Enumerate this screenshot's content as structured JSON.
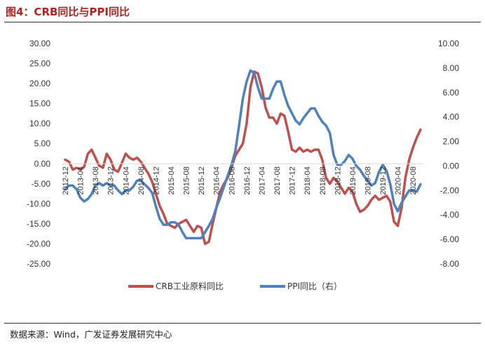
{
  "header": {
    "title": "图4：CRB同比与PPI同比"
  },
  "footer": {
    "source": "数据来源：Wind，广发证券发展研究中心"
  },
  "colors": {
    "crb": "#c0504d",
    "ppi": "#4f81bd",
    "title": "#b22222"
  },
  "chart_data": {
    "type": "line",
    "title": "图4：CRB同比与PPI同比",
    "x_tick_labels": [
      "2012-12",
      "2013-04",
      "2013-08",
      "2013-12",
      "2014-04",
      "2014-08",
      "2014-12",
      "2015-04",
      "2015-08",
      "2015-12",
      "2016-04",
      "2016-08",
      "2016-12",
      "2017-04",
      "2017-08",
      "2017-12",
      "2018-04",
      "2018-08",
      "2018-12",
      "2019-04",
      "2019-08",
      "2019-12",
      "2020-04",
      "2020-08"
    ],
    "left_axis": {
      "min": -25,
      "max": 30,
      "ticks": [
        "30.00",
        "25.00",
        "20.00",
        "15.00",
        "10.00",
        "5.00",
        "0.00",
        "-5.00",
        "-10.00",
        "-15.00",
        "-20.00",
        "-25.00"
      ]
    },
    "right_axis": {
      "min": -8,
      "max": 10,
      "ticks": [
        "10.00",
        "8.00",
        "6.00",
        "4.00",
        "2.00",
        "0.00",
        "-2.00",
        "-4.00",
        "-6.00",
        "-8.00"
      ]
    },
    "series": [
      {
        "name": "CRB工业原料同比",
        "axis": "left",
        "start": "2012-12",
        "values": [
          1.0,
          0.5,
          -1.5,
          -1.0,
          -1.5,
          -0.8,
          2.5,
          3.5,
          1.5,
          -0.5,
          -1.0,
          2.5,
          1.0,
          -1.5,
          -2.0,
          0.2,
          2.5,
          1.5,
          1.0,
          1.5,
          0.5,
          -1.0,
          -2.5,
          -4.5,
          -7.5,
          -10.5,
          -12.5,
          -15.0,
          -15.5,
          -16.0,
          -15.0,
          -14.5,
          -14.0,
          -15.5,
          -17.0,
          -15.5,
          -16.0,
          -20.0,
          -19.5,
          -15.0,
          -11.0,
          -7.0,
          -5.0,
          -3.5,
          -1.0,
          2.0,
          3.5,
          5.0,
          10.0,
          19.0,
          23.0,
          22.5,
          19.0,
          14.0,
          11.5,
          11.5,
          10.0,
          12.5,
          12.0,
          8.0,
          3.5,
          3.0,
          4.0,
          3.0,
          3.5,
          3.0,
          3.5,
          3.5,
          1.0,
          -3.5,
          -5.0,
          -3.5,
          -4.5,
          -6.0,
          -7.5,
          -6.0,
          -7.0,
          -10.0,
          -12.0,
          -11.5,
          -10.5,
          -9.0,
          -8.0,
          -9.0,
          -8.5,
          -8.0,
          -9.5,
          -14.5,
          -15.5,
          -11.0,
          -3.5,
          1.0,
          4.0,
          6.5,
          8.5
        ]
      },
      {
        "name": "PPI同比（右）",
        "axis": "right",
        "start": "2012-12",
        "values": [
          -1.9,
          -1.6,
          -1.6,
          -1.9,
          -2.6,
          -2.9,
          -2.7,
          -2.3,
          -1.6,
          -1.4,
          -1.6,
          -1.4,
          -1.6,
          -1.6,
          -2.0,
          -2.3,
          -2.0,
          -2.0,
          -1.7,
          -1.2,
          -1.2,
          -1.5,
          -1.8,
          -2.2,
          -3.3,
          -4.3,
          -4.8,
          -4.8,
          -4.6,
          -4.6,
          -4.8,
          -5.4,
          -5.9,
          -5.9,
          -5.9,
          -5.9,
          -5.9,
          -5.4,
          -4.9,
          -4.3,
          -3.4,
          -2.6,
          -1.7,
          -0.8,
          0.1,
          1.2,
          3.3,
          5.5,
          6.9,
          7.8,
          7.6,
          6.4,
          5.5,
          5.5,
          5.5,
          6.3,
          6.9,
          6.9,
          5.8,
          4.9,
          4.3,
          3.7,
          3.4,
          3.9,
          4.3,
          4.7,
          4.7,
          4.1,
          3.6,
          3.3,
          2.7,
          0.9,
          0.1,
          0.1,
          0.4,
          0.9,
          0.6,
          0.0,
          -0.3,
          -0.8,
          -1.2,
          -1.6,
          -1.4,
          -0.5,
          0.1,
          -0.4,
          -1.5,
          -3.1,
          -3.7,
          -3.0,
          -2.5,
          -2.0,
          -2.0,
          -2.1,
          -1.5
        ]
      }
    ],
    "legend": [
      "CRB工业原料同比",
      "PPI同比（右）"
    ],
    "legend_position": "bottom",
    "grid": false
  }
}
